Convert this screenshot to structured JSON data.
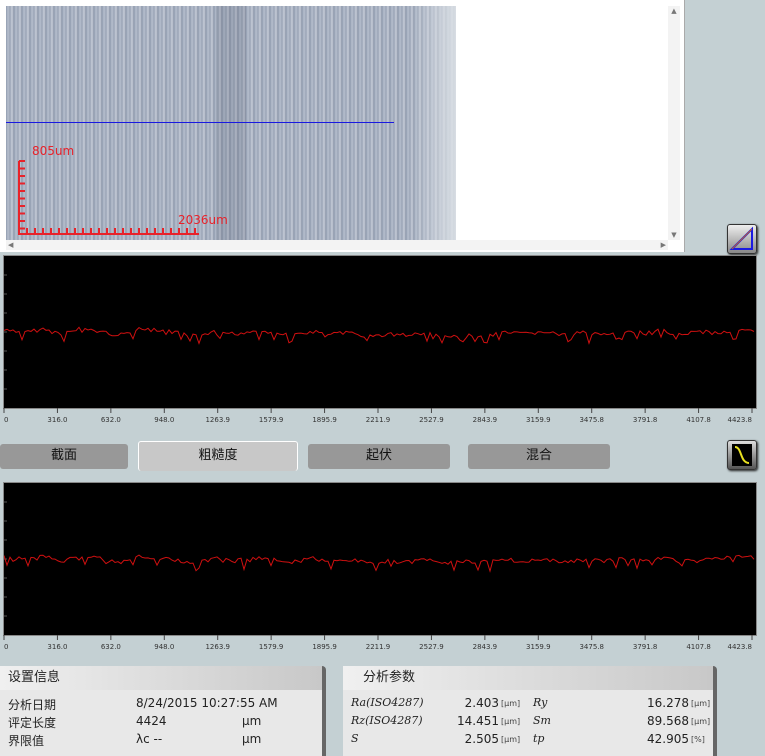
{
  "viewer": {
    "scale_y_label": "805um",
    "scale_x_label": "2036um",
    "colors": {
      "profile_line": "#1a1ae0",
      "scale": "#e8222a"
    }
  },
  "icons": {
    "measure": "triangle-ruler-icon",
    "filter": "filter-curve-icon"
  },
  "chart_data": [
    {
      "type": "line",
      "xlim": [
        0,
        4423.8
      ],
      "x_ticks": [
        "0",
        "316.0",
        "632.0",
        "948.0",
        "1263.9",
        "1579.9",
        "1895.9",
        "2211.9",
        "2527.9",
        "2843.9",
        "3159.9",
        "3475.8",
        "3791.8",
        "4107.8",
        "4423.8"
      ],
      "color": "#d01010",
      "background": "#000000",
      "profile": [
        0,
        -2,
        1,
        -3,
        2,
        -1,
        -4,
        1,
        0,
        -2,
        -5,
        -1,
        -3,
        0,
        -2,
        -4,
        -1,
        -3,
        -2,
        -5,
        -3,
        -4,
        -2,
        -6,
        -3,
        -4,
        -2,
        -3,
        -1,
        -4,
        -2,
        -3,
        -1,
        -2,
        0,
        -3,
        -1,
        -2,
        0,
        -1
      ]
    },
    {
      "type": "line",
      "xlim": [
        0,
        4423.8
      ],
      "x_ticks": [
        "0",
        "316.0",
        "632.0",
        "948.0",
        "1263.9",
        "1579.9",
        "1895.9",
        "2211.9",
        "2527.9",
        "2843.9",
        "3159.9",
        "3475.8",
        "3791.8",
        "4107.8",
        "4423.8"
      ],
      "color": "#d01010",
      "background": "#000000",
      "profile": [
        0,
        -1,
        1,
        -3,
        2,
        -1,
        -4,
        1,
        -1,
        -2,
        -5,
        -1,
        -3,
        0,
        -2,
        -4,
        -1,
        -3,
        -2,
        -4,
        -3,
        -4,
        -2,
        -5,
        -3,
        -4,
        -2,
        -3,
        -1,
        -4,
        -2,
        -3,
        -1,
        -2,
        0,
        -3,
        -1,
        -1,
        1,
        0
      ]
    }
  ],
  "tabs": [
    {
      "label": "截面"
    },
    {
      "label": "粗糙度"
    },
    {
      "label": "起伏"
    },
    {
      "label": "混合"
    }
  ],
  "settings": {
    "title": "设置信息",
    "rows": [
      {
        "label": "分析日期",
        "value": "8/24/2015 10:27:55 AM",
        "unit": ""
      },
      {
        "label": "评定长度",
        "value": "4424",
        "unit": "μm"
      },
      {
        "label": "界限值",
        "value": "λc   --",
        "unit": "μm"
      }
    ]
  },
  "analysis": {
    "title": "分析参数",
    "rows": [
      {
        "name1": "Ra(ISO4287)",
        "val1": "2.403",
        "unit1": "[μm]",
        "name2": "Ry",
        "val2": "16.278",
        "unit2": "[μm]"
      },
      {
        "name1": "Rz(ISO4287)",
        "val1": "14.451",
        "unit1": "[μm]",
        "name2": "Sm",
        "val2": "89.568",
        "unit2": "[μm]"
      },
      {
        "name1": "S",
        "val1": "2.505",
        "unit1": "[μm]",
        "name2": "tp",
        "val2": "42.905",
        "unit2": "[%]"
      }
    ]
  }
}
